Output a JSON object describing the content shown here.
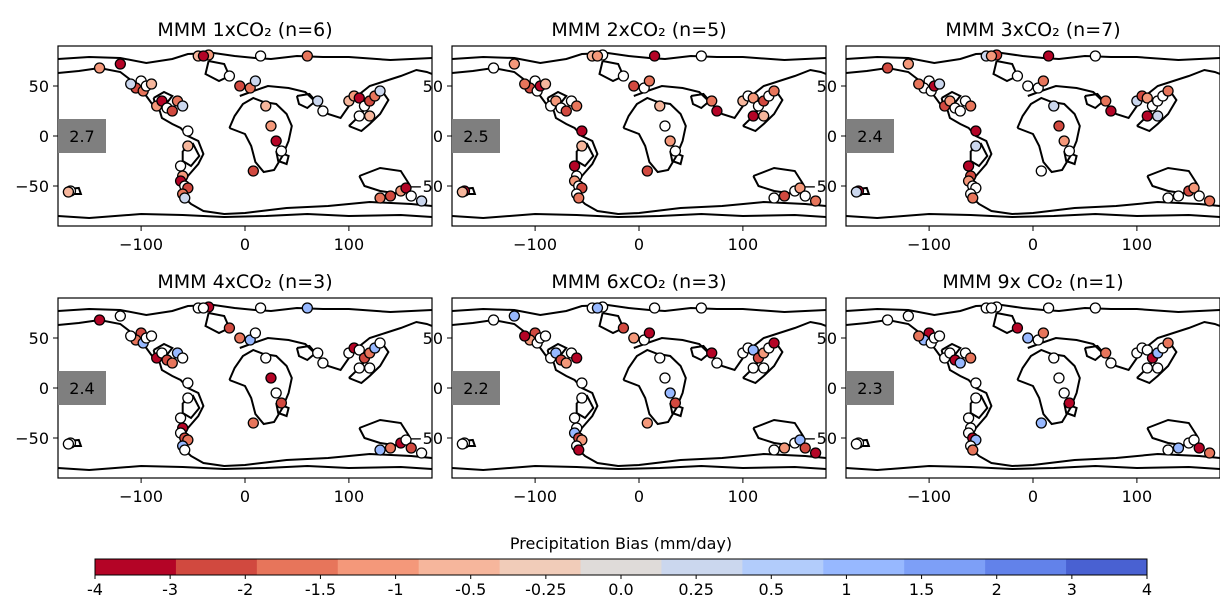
{
  "figure": {
    "colorbar": {
      "label": "Precipitation Bias (mm/day)",
      "tick_labels": [
        "-4",
        "-3",
        "-2",
        "-1.5",
        "-1",
        "-0.5",
        "-0.25",
        "0.0",
        "0.25",
        "0.5",
        "1",
        "1.5",
        "2",
        "3",
        "4"
      ],
      "colors": [
        "#b40426",
        "#d1493f",
        "#e7755b",
        "#f4987a",
        "#f6b69c",
        "#f1ccb9",
        "#dfdbd9",
        "#cbd7ee",
        "#b2ccfb",
        "#97b8ff",
        "#7d9ff7",
        "#6282ea",
        "#4961d2"
      ]
    }
  },
  "chart_data": [
    {
      "type": "scatter",
      "title": "MMM 1xCO₂  (n=6)",
      "score": "2.7",
      "xlim": [
        -180,
        180
      ],
      "ylim": [
        -90,
        90
      ],
      "xticks": [
        -100,
        0,
        100
      ],
      "yticks": [
        -50,
        0,
        50
      ],
      "xtick_labels": [
        "−100",
        "0",
        "100"
      ],
      "ytick_labels": [
        "−50",
        "0",
        "50"
      ],
      "bias_pattern": "mostly dry (red) in NH mid/high latitudes, near-zero (white/pale blue) over South America, dry SE Asia"
    },
    {
      "type": "scatter",
      "title": "MMM 2xCO₂  (n=5)",
      "score": "2.5",
      "xlim": [
        -180,
        180
      ],
      "ylim": [
        -90,
        90
      ],
      "xticks": [
        -100,
        0,
        100
      ],
      "yticks": [
        -50,
        0,
        50
      ],
      "xtick_labels": [
        "−100",
        "0",
        "100"
      ],
      "ytick_labels": [
        "−50",
        "0",
        "50"
      ]
    },
    {
      "type": "scatter",
      "title": "MMM 3xCO₂  (n=7)",
      "score": "2.4",
      "xlim": [
        -180,
        180
      ],
      "ylim": [
        -90,
        90
      ],
      "xticks": [
        -100,
        0,
        100
      ],
      "yticks": [
        -50,
        0,
        50
      ],
      "xtick_labels": [
        "−100",
        "0",
        "100"
      ],
      "ytick_labels": [
        "−50",
        "0",
        "50"
      ]
    },
    {
      "type": "scatter",
      "title": "MMM 4xCO₂  (n=3)",
      "score": "2.4",
      "xlim": [
        -180,
        180
      ],
      "ylim": [
        -90,
        90
      ],
      "xticks": [
        -100,
        0,
        100
      ],
      "yticks": [
        -50,
        0,
        50
      ],
      "xtick_labels": [
        "−100",
        "0",
        "100"
      ],
      "ytick_labels": [
        "−50",
        "0",
        "50"
      ]
    },
    {
      "type": "scatter",
      "title": "MMM 6xCO₂  (n=3)",
      "score": "2.2",
      "xlim": [
        -180,
        180
      ],
      "ylim": [
        -90,
        90
      ],
      "xticks": [
        -100,
        0,
        100
      ],
      "yticks": [
        -50,
        0,
        50
      ],
      "xtick_labels": [
        "−100",
        "0",
        "100"
      ],
      "ytick_labels": [
        "−50",
        "0",
        "50"
      ]
    },
    {
      "type": "scatter",
      "title": "MMM 9x CO₂  (n=1)",
      "score": "2.3",
      "xlim": [
        -180,
        180
      ],
      "ylim": [
        -90,
        90
      ],
      "xticks": [
        -100,
        0,
        100
      ],
      "yticks": [
        -50,
        0,
        50
      ],
      "xtick_labels": [
        "−100",
        "0",
        "100"
      ],
      "ytick_labels": [
        "−50",
        "0",
        "50"
      ]
    }
  ]
}
